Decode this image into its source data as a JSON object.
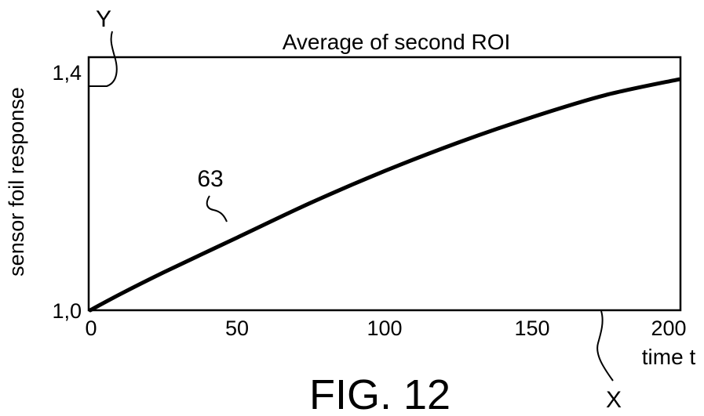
{
  "figure": {
    "caption": "FIG. 12",
    "axis_ref_y": "Y",
    "axis_ref_x": "X",
    "curve_ref": "63"
  },
  "chart_data": {
    "type": "line",
    "title": "Average of second ROI",
    "xlabel": "time t",
    "ylabel": "sensor foil response",
    "xlim": [
      0,
      200
    ],
    "ylim": [
      1.0,
      1.4
    ],
    "x_ticks": [
      "0",
      "50",
      "100",
      "150",
      "200"
    ],
    "y_ticks": [
      "1,0",
      "1,4"
    ],
    "grid": false,
    "series": [
      {
        "x": [
          0,
          10,
          25,
          50,
          75,
          100,
          125,
          150,
          175,
          200
        ],
        "y": [
          1.0,
          1.025,
          1.06,
          1.115,
          1.17,
          1.22,
          1.265,
          1.305,
          1.34,
          1.365
        ]
      }
    ]
  }
}
